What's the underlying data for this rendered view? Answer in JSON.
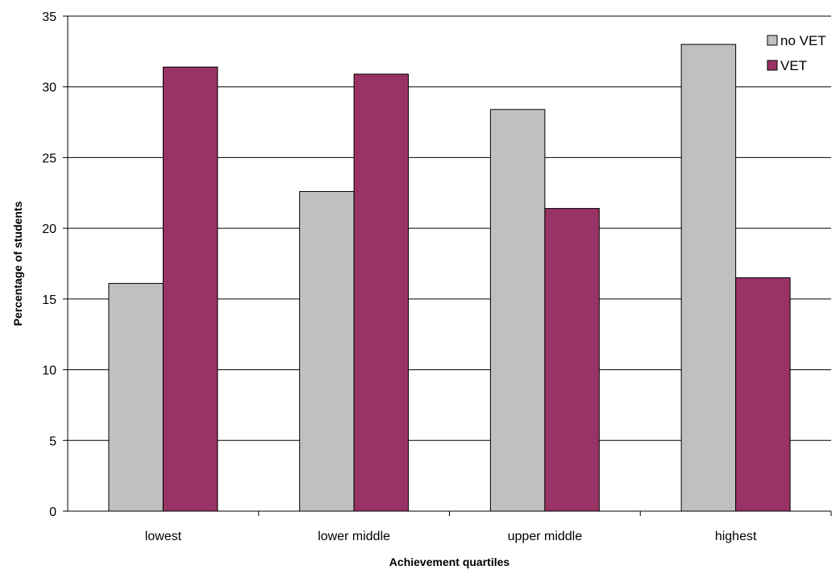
{
  "chart_data": {
    "type": "bar",
    "title": "",
    "xlabel": "Achievement quartiles",
    "ylabel": "Percentage of students",
    "categories": [
      "lowest",
      "lower middle",
      "upper middle",
      "highest"
    ],
    "series": [
      {
        "name": "no VET",
        "color": "#c0c0c0",
        "values": [
          16.1,
          22.6,
          28.4,
          33.0
        ]
      },
      {
        "name": "VET",
        "color": "#993366",
        "values": [
          31.4,
          30.9,
          21.4,
          16.5
        ]
      }
    ],
    "ylim": [
      0,
      35
    ],
    "yticks": [
      0,
      5,
      10,
      15,
      20,
      25,
      30,
      35
    ],
    "grid": true,
    "legend": "top-right"
  }
}
